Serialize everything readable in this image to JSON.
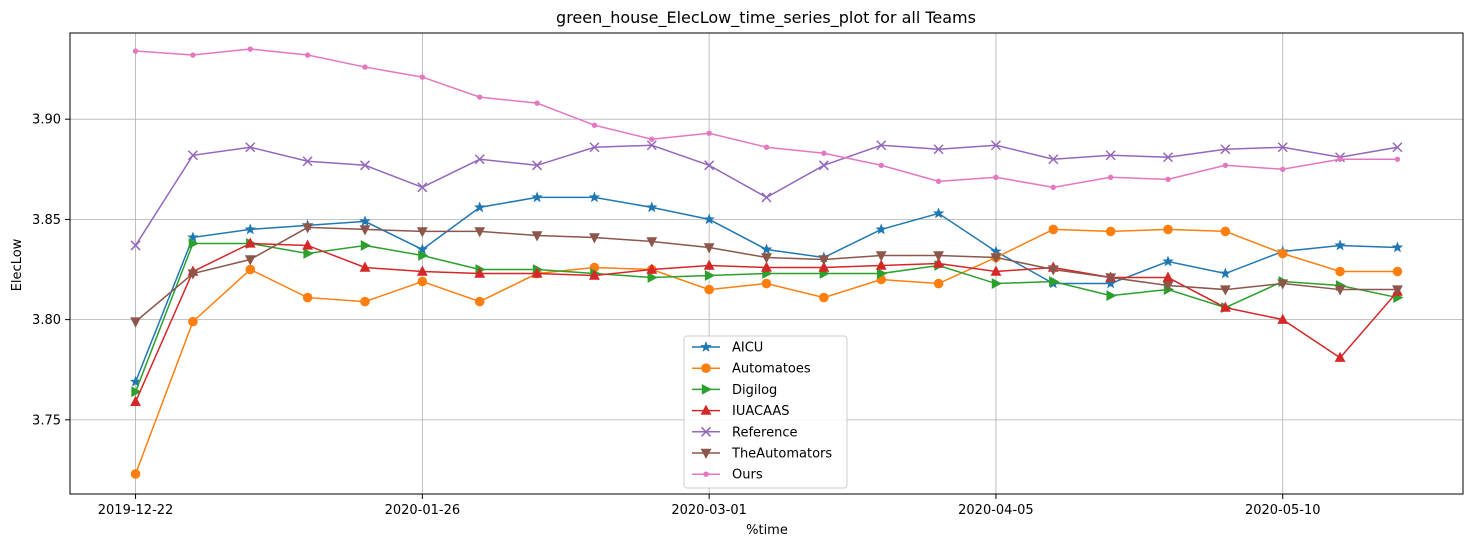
{
  "chart_data": {
    "type": "line",
    "title": "green_house_ElecLow_time_series_plot for all Teams",
    "xlabel": "%time",
    "ylabel": "ElecLow",
    "x": [
      "2019-12-22",
      "2019-12-29",
      "2020-01-05",
      "2020-01-12",
      "2020-01-19",
      "2020-01-26",
      "2020-02-02",
      "2020-02-09",
      "2020-02-16",
      "2020-02-23",
      "2020-03-01",
      "2020-03-08",
      "2020-03-15",
      "2020-03-22",
      "2020-03-29",
      "2020-04-05",
      "2020-04-12",
      "2020-04-19",
      "2020-04-26",
      "2020-05-03",
      "2020-05-10",
      "2020-05-17",
      "2020-05-24"
    ],
    "xticks": [
      "2019-12-22",
      "2020-01-26",
      "2020-03-01",
      "2020-04-05",
      "2020-05-10"
    ],
    "yticks": [
      3.75,
      3.8,
      3.85,
      3.9
    ],
    "ytick_labels": [
      "3.75",
      "3.80",
      "3.85",
      "3.90"
    ],
    "ylim": [
      3.713,
      3.943
    ],
    "xlim": [
      "2019-12-14",
      "2020-06-01"
    ],
    "grid": true,
    "legend_position": "lower center",
    "series": [
      {
        "name": "AICU",
        "color": "#1f77b4",
        "marker": "star",
        "values": [
          3.769,
          3.841,
          3.845,
          3.847,
          3.849,
          3.835,
          3.856,
          3.861,
          3.861,
          3.856,
          3.85,
          3.835,
          3.831,
          3.845,
          3.853,
          3.834,
          3.818,
          3.818,
          3.829,
          3.823,
          3.834,
          3.837,
          3.836
        ]
      },
      {
        "name": "Automatoes",
        "color": "#ff7f0e",
        "marker": "circle",
        "values": [
          3.723,
          3.799,
          3.825,
          3.811,
          3.809,
          3.819,
          3.809,
          3.823,
          3.826,
          3.825,
          3.815,
          3.818,
          3.811,
          3.82,
          3.818,
          3.831,
          3.845,
          3.844,
          3.845,
          3.844,
          3.833,
          3.824,
          3.824
        ]
      },
      {
        "name": "Digilog",
        "color": "#2ca02c",
        "marker": "triangle-right",
        "values": [
          3.764,
          3.838,
          3.838,
          3.833,
          3.837,
          3.832,
          3.825,
          3.825,
          3.823,
          3.821,
          3.822,
          3.823,
          3.823,
          3.823,
          3.827,
          3.818,
          3.819,
          3.812,
          3.815,
          3.806,
          3.819,
          3.817,
          3.811
        ]
      },
      {
        "name": "IUACAAS",
        "color": "#d62728",
        "marker": "triangle-up",
        "values": [
          3.759,
          3.824,
          3.838,
          3.837,
          3.826,
          3.824,
          3.823,
          3.823,
          3.822,
          3.825,
          3.827,
          3.826,
          3.826,
          3.827,
          3.828,
          3.824,
          3.826,
          3.821,
          3.821,
          3.806,
          3.8,
          3.781,
          3.814
        ]
      },
      {
        "name": "Reference",
        "color": "#9467bd",
        "marker": "x",
        "values": [
          3.837,
          3.882,
          3.886,
          3.879,
          3.877,
          3.866,
          3.88,
          3.877,
          3.886,
          3.887,
          3.877,
          3.861,
          3.877,
          3.887,
          3.885,
          3.887,
          3.88,
          3.882,
          3.881,
          3.885,
          3.886,
          3.881,
          3.886
        ]
      },
      {
        "name": "TheAutomators",
        "color": "#8c564b",
        "marker": "triangle-down",
        "values": [
          3.799,
          3.823,
          3.83,
          3.846,
          3.845,
          3.844,
          3.844,
          3.842,
          3.841,
          3.839,
          3.836,
          3.831,
          3.83,
          3.832,
          3.832,
          3.831,
          3.825,
          3.821,
          3.817,
          3.815,
          3.818,
          3.815,
          3.815
        ]
      },
      {
        "name": "Ours",
        "color": "#e377c2",
        "marker": "point",
        "values": [
          3.934,
          3.932,
          3.935,
          3.932,
          3.926,
          3.921,
          3.911,
          3.908,
          3.897,
          3.89,
          3.893,
          3.886,
          3.883,
          3.877,
          3.869,
          3.871,
          3.866,
          3.871,
          3.87,
          3.877,
          3.875,
          3.88,
          3.88
        ]
      }
    ]
  }
}
